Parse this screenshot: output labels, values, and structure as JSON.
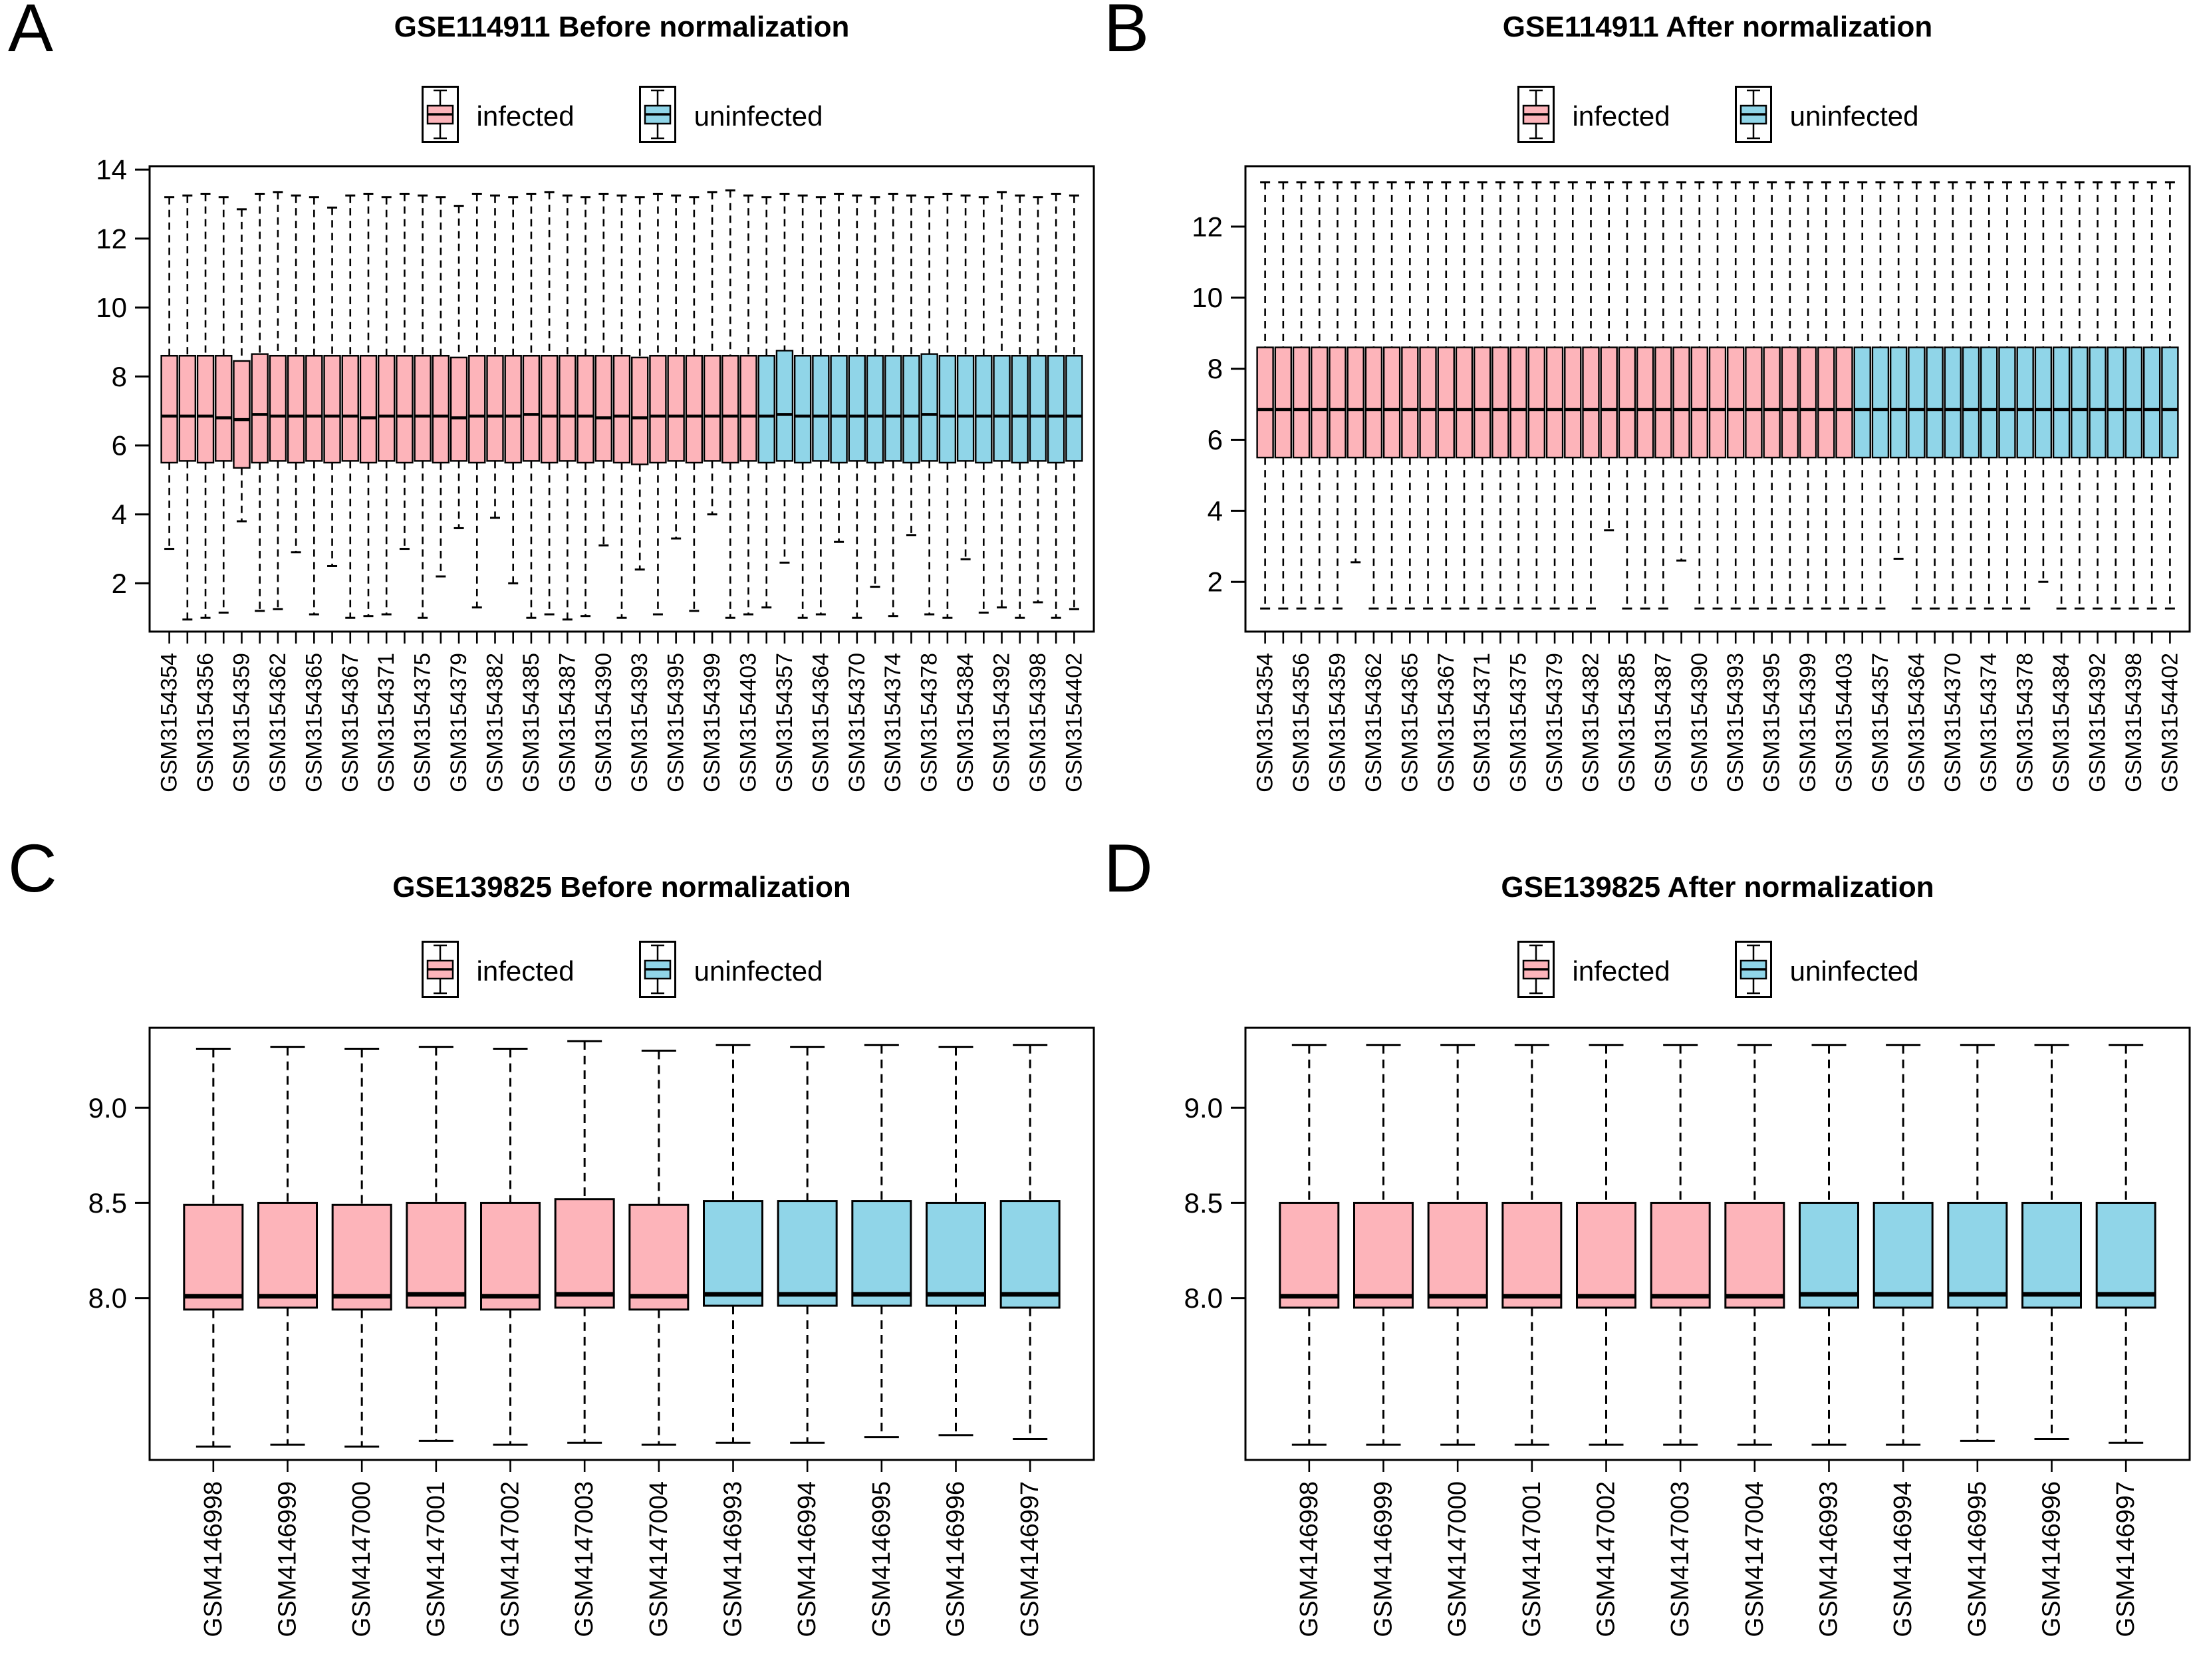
{
  "colors": {
    "infected": "#FDB4BA",
    "uninfected": "#90D5E8",
    "box_border": "#000000",
    "background": "#FFFFFF"
  },
  "chart_data": [
    {
      "panel_letter": "A",
      "title": "GSE114911 Before normalization",
      "type": "boxplot",
      "legend": [
        {
          "label": "infected",
          "color": "#FDB4BA"
        },
        {
          "label": "uninfected",
          "color": "#90D5E8"
        }
      ],
      "legend_position": "top-center",
      "grid": false,
      "ylim": [
        0.6,
        14.1
      ],
      "y_ticks": [
        2,
        4,
        6,
        8,
        10,
        12,
        14
      ],
      "y_tick_labels": [
        "2",
        "4",
        "6",
        "8",
        "10",
        "12",
        "14"
      ],
      "groups": {
        "infected": 33,
        "uninfected": 18
      },
      "label_every": 2,
      "x_tick_labels": [
        "GSM3154354",
        "GSM3154356",
        "GSM3154359",
        "GSM3154362",
        "GSM3154365",
        "GSM3154367",
        "GSM3154371",
        "GSM3154375",
        "GSM3154379",
        "GSM3154382",
        "GSM3154385",
        "GSM3154387",
        "GSM3154390",
        "GSM3154393",
        "GSM3154395",
        "GSM3154399",
        "GSM3154403",
        "GSM3154357",
        "GSM3154364",
        "GSM3154370",
        "GSM3154374",
        "GSM3154378",
        "GSM3154384",
        "GSM3154392",
        "GSM3154398",
        "GSM3154402"
      ],
      "boxes": {
        "lo": [
          3.0,
          0.95,
          1.0,
          1.15,
          3.8,
          1.2,
          1.25,
          2.9,
          1.1,
          2.5,
          1.0,
          1.05,
          1.1,
          3.0,
          1.0,
          2.2,
          3.6,
          1.3,
          3.9,
          2.0,
          1.0,
          1.1,
          0.95,
          1.05,
          3.1,
          1.0,
          2.4,
          1.1,
          3.3,
          1.2,
          4.0,
          1.0,
          1.1,
          1.3,
          2.6,
          1.0,
          1.1,
          3.2,
          1.0,
          1.9,
          1.05,
          3.4,
          1.1,
          1.0,
          2.7,
          1.15,
          1.3,
          1.0,
          1.45,
          1.0,
          1.25
        ],
        "q1": [
          5.5,
          5.55,
          5.5,
          5.55,
          5.35,
          5.5,
          5.55,
          5.5,
          5.55,
          5.5,
          5.55,
          5.5,
          5.55,
          5.5,
          5.55,
          5.5,
          5.55,
          5.5,
          5.55,
          5.5,
          5.55,
          5.5,
          5.55,
          5.5,
          5.55,
          5.5,
          5.45,
          5.5,
          5.55,
          5.5,
          5.55,
          5.5,
          5.55,
          5.5,
          5.55,
          5.5,
          5.55,
          5.5,
          5.55,
          5.5,
          5.55,
          5.5,
          5.55,
          5.5,
          5.55,
          5.5,
          5.55,
          5.5,
          5.55,
          5.5,
          5.55
        ],
        "med": [
          6.85,
          6.85,
          6.85,
          6.8,
          6.75,
          6.9,
          6.85,
          6.85,
          6.85,
          6.85,
          6.85,
          6.8,
          6.85,
          6.85,
          6.85,
          6.85,
          6.8,
          6.85,
          6.85,
          6.85,
          6.9,
          6.85,
          6.85,
          6.85,
          6.8,
          6.85,
          6.8,
          6.85,
          6.85,
          6.85,
          6.85,
          6.85,
          6.85,
          6.85,
          6.9,
          6.85,
          6.85,
          6.85,
          6.85,
          6.85,
          6.85,
          6.85,
          6.9,
          6.85,
          6.85,
          6.85,
          6.85,
          6.85,
          6.85,
          6.85,
          6.85
        ],
        "q3": [
          8.6,
          8.6,
          8.6,
          8.6,
          8.45,
          8.65,
          8.6,
          8.6,
          8.6,
          8.6,
          8.6,
          8.6,
          8.6,
          8.6,
          8.6,
          8.6,
          8.55,
          8.6,
          8.6,
          8.6,
          8.6,
          8.6,
          8.6,
          8.6,
          8.6,
          8.6,
          8.55,
          8.6,
          8.6,
          8.6,
          8.6,
          8.6,
          8.6,
          8.6,
          8.75,
          8.6,
          8.6,
          8.6,
          8.6,
          8.6,
          8.6,
          8.6,
          8.65,
          8.6,
          8.6,
          8.6,
          8.6,
          8.6,
          8.6,
          8.6,
          8.6
        ],
        "hi": [
          13.2,
          13.25,
          13.3,
          13.2,
          12.85,
          13.3,
          13.35,
          13.25,
          13.2,
          12.9,
          13.25,
          13.3,
          13.2,
          13.3,
          13.25,
          13.2,
          12.95,
          13.3,
          13.25,
          13.2,
          13.3,
          13.35,
          13.25,
          13.2,
          13.3,
          13.25,
          13.2,
          13.3,
          13.25,
          13.2,
          13.35,
          13.4,
          13.25,
          13.2,
          13.3,
          13.25,
          13.2,
          13.3,
          13.25,
          13.2,
          13.3,
          13.25,
          13.2,
          13.3,
          13.25,
          13.2,
          13.35,
          13.25,
          13.2,
          13.3,
          13.25
        ]
      }
    },
    {
      "panel_letter": "B",
      "title": "GSE114911 After normalization",
      "type": "boxplot",
      "legend": [
        {
          "label": "infected",
          "color": "#FDB4BA"
        },
        {
          "label": "uninfected",
          "color": "#90D5E8"
        }
      ],
      "legend_position": "top-center",
      "grid": false,
      "ylim": [
        0.6,
        13.7
      ],
      "y_ticks": [
        2,
        4,
        6,
        8,
        10,
        12
      ],
      "y_tick_labels": [
        "2",
        "4",
        "6",
        "8",
        "10",
        "12"
      ],
      "groups": {
        "infected": 33,
        "uninfected": 18
      },
      "label_every": 2,
      "x_tick_labels": [
        "GSM3154354",
        "GSM3154356",
        "GSM3154359",
        "GSM3154362",
        "GSM3154365",
        "GSM3154367",
        "GSM3154371",
        "GSM3154375",
        "GSM3154379",
        "GSM3154382",
        "GSM3154385",
        "GSM3154387",
        "GSM3154390",
        "GSM3154393",
        "GSM3154395",
        "GSM3154399",
        "GSM3154403",
        "GSM3154357",
        "GSM3154364",
        "GSM3154370",
        "GSM3154374",
        "GSM3154378",
        "GSM3154384",
        "GSM3154392",
        "GSM3154398",
        "GSM3154402"
      ],
      "boxes": {
        "lo": [
          1.25,
          1.25,
          1.25,
          1.25,
          1.25,
          2.55,
          1.25,
          1.25,
          1.25,
          1.25,
          1.25,
          1.25,
          1.25,
          1.25,
          1.25,
          1.25,
          1.25,
          1.25,
          1.25,
          3.45,
          1.25,
          1.25,
          1.25,
          2.6,
          1.25,
          1.25,
          1.25,
          1.25,
          1.25,
          1.25,
          1.25,
          1.25,
          1.25,
          1.25,
          1.25,
          2.65,
          1.25,
          1.25,
          1.25,
          1.25,
          1.25,
          1.25,
          1.25,
          2.0,
          1.25,
          1.25,
          1.25,
          1.25,
          1.25,
          1.25,
          1.25
        ],
        "q1": [
          5.5,
          5.5,
          5.5,
          5.5,
          5.5,
          5.5,
          5.5,
          5.5,
          5.5,
          5.5,
          5.5,
          5.5,
          5.5,
          5.5,
          5.5,
          5.5,
          5.5,
          5.5,
          5.5,
          5.5,
          5.5,
          5.5,
          5.5,
          5.5,
          5.5,
          5.5,
          5.5,
          5.5,
          5.5,
          5.5,
          5.5,
          5.5,
          5.5,
          5.5,
          5.5,
          5.5,
          5.5,
          5.5,
          5.5,
          5.5,
          5.5,
          5.5,
          5.5,
          5.5,
          5.5,
          5.5,
          5.5,
          5.5,
          5.5,
          5.5,
          5.5
        ],
        "med": [
          6.85,
          6.85,
          6.85,
          6.85,
          6.85,
          6.85,
          6.85,
          6.85,
          6.85,
          6.85,
          6.85,
          6.85,
          6.85,
          6.85,
          6.85,
          6.85,
          6.85,
          6.85,
          6.85,
          6.85,
          6.85,
          6.85,
          6.85,
          6.85,
          6.85,
          6.85,
          6.85,
          6.85,
          6.85,
          6.85,
          6.85,
          6.85,
          6.85,
          6.85,
          6.85,
          6.85,
          6.85,
          6.85,
          6.85,
          6.85,
          6.85,
          6.85,
          6.85,
          6.85,
          6.85,
          6.85,
          6.85,
          6.85,
          6.85,
          6.85,
          6.85
        ],
        "q3": [
          8.6,
          8.6,
          8.6,
          8.6,
          8.6,
          8.6,
          8.6,
          8.6,
          8.6,
          8.6,
          8.6,
          8.6,
          8.6,
          8.6,
          8.6,
          8.6,
          8.6,
          8.6,
          8.6,
          8.6,
          8.6,
          8.6,
          8.6,
          8.6,
          8.6,
          8.6,
          8.6,
          8.6,
          8.6,
          8.6,
          8.6,
          8.6,
          8.6,
          8.6,
          8.6,
          8.6,
          8.6,
          8.6,
          8.6,
          8.6,
          8.6,
          8.6,
          8.6,
          8.6,
          8.6,
          8.6,
          8.6,
          8.6,
          8.6,
          8.6,
          8.6
        ],
        "hi": [
          13.25,
          13.25,
          13.25,
          13.25,
          13.25,
          13.25,
          13.25,
          13.25,
          13.25,
          13.25,
          13.25,
          13.25,
          13.25,
          13.25,
          13.25,
          13.25,
          13.25,
          13.25,
          13.25,
          13.25,
          13.25,
          13.25,
          13.25,
          13.25,
          13.25,
          13.25,
          13.25,
          13.25,
          13.25,
          13.25,
          13.25,
          13.25,
          13.25,
          13.25,
          13.25,
          13.25,
          13.25,
          13.25,
          13.25,
          13.25,
          13.25,
          13.25,
          13.25,
          13.25,
          13.25,
          13.25,
          13.25,
          13.25,
          13.25,
          13.25,
          13.25
        ]
      }
    },
    {
      "panel_letter": "C",
      "title": "GSE139825 Before normalization",
      "type": "boxplot",
      "legend": [
        {
          "label": "infected",
          "color": "#FDB4BA"
        },
        {
          "label": "uninfected",
          "color": "#90D5E8"
        }
      ],
      "legend_position": "top-center",
      "grid": false,
      "ylim": [
        7.15,
        9.42
      ],
      "y_ticks": [
        8.0,
        8.5,
        9.0
      ],
      "y_tick_labels": [
        "8.0",
        "8.5",
        "9.0"
      ],
      "groups": {
        "infected": 7,
        "uninfected": 5
      },
      "label_every": 1,
      "x_tick_labels": [
        "GSM4146998",
        "GSM4146999",
        "GSM4147000",
        "GSM4147001",
        "GSM4147002",
        "GSM4147003",
        "GSM4147004",
        "GSM4146993",
        "GSM4146994",
        "GSM4146995",
        "GSM4146996",
        "GSM4146997"
      ],
      "boxes": {
        "lo": [
          7.22,
          7.23,
          7.22,
          7.25,
          7.23,
          7.24,
          7.23,
          7.24,
          7.24,
          7.27,
          7.28,
          7.26
        ],
        "q1": [
          7.94,
          7.95,
          7.94,
          7.95,
          7.94,
          7.95,
          7.94,
          7.96,
          7.96,
          7.96,
          7.96,
          7.95
        ],
        "med": [
          8.01,
          8.01,
          8.01,
          8.02,
          8.01,
          8.02,
          8.01,
          8.02,
          8.02,
          8.02,
          8.02,
          8.02
        ],
        "q3": [
          8.49,
          8.5,
          8.49,
          8.5,
          8.5,
          8.52,
          8.49,
          8.51,
          8.51,
          8.51,
          8.5,
          8.51
        ],
        "hi": [
          9.31,
          9.32,
          9.31,
          9.32,
          9.31,
          9.35,
          9.3,
          9.33,
          9.32,
          9.33,
          9.32,
          9.33
        ]
      }
    },
    {
      "panel_letter": "D",
      "title": "GSE139825 After normalization",
      "type": "boxplot",
      "legend": [
        {
          "label": "infected",
          "color": "#FDB4BA"
        },
        {
          "label": "uninfected",
          "color": "#90D5E8"
        }
      ],
      "legend_position": "top-center",
      "grid": false,
      "ylim": [
        7.15,
        9.42
      ],
      "y_ticks": [
        8.0,
        8.5,
        9.0
      ],
      "y_tick_labels": [
        "8.0",
        "8.5",
        "9.0"
      ],
      "groups": {
        "infected": 7,
        "uninfected": 5
      },
      "label_every": 1,
      "x_tick_labels": [
        "GSM4146998",
        "GSM4146999",
        "GSM4147000",
        "GSM4147001",
        "GSM4147002",
        "GSM4147003",
        "GSM4147004",
        "GSM4146993",
        "GSM4146994",
        "GSM4146995",
        "GSM4146996",
        "GSM4146997"
      ],
      "boxes": {
        "lo": [
          7.23,
          7.23,
          7.23,
          7.23,
          7.23,
          7.23,
          7.23,
          7.23,
          7.23,
          7.25,
          7.26,
          7.24
        ],
        "q1": [
          7.95,
          7.95,
          7.95,
          7.95,
          7.95,
          7.95,
          7.95,
          7.95,
          7.95,
          7.95,
          7.95,
          7.95
        ],
        "med": [
          8.01,
          8.01,
          8.01,
          8.01,
          8.01,
          8.01,
          8.01,
          8.02,
          8.02,
          8.02,
          8.02,
          8.02
        ],
        "q3": [
          8.5,
          8.5,
          8.5,
          8.5,
          8.5,
          8.5,
          8.5,
          8.5,
          8.5,
          8.5,
          8.5,
          8.5
        ],
        "hi": [
          9.33,
          9.33,
          9.33,
          9.33,
          9.33,
          9.33,
          9.33,
          9.33,
          9.33,
          9.33,
          9.33,
          9.33
        ]
      }
    }
  ]
}
